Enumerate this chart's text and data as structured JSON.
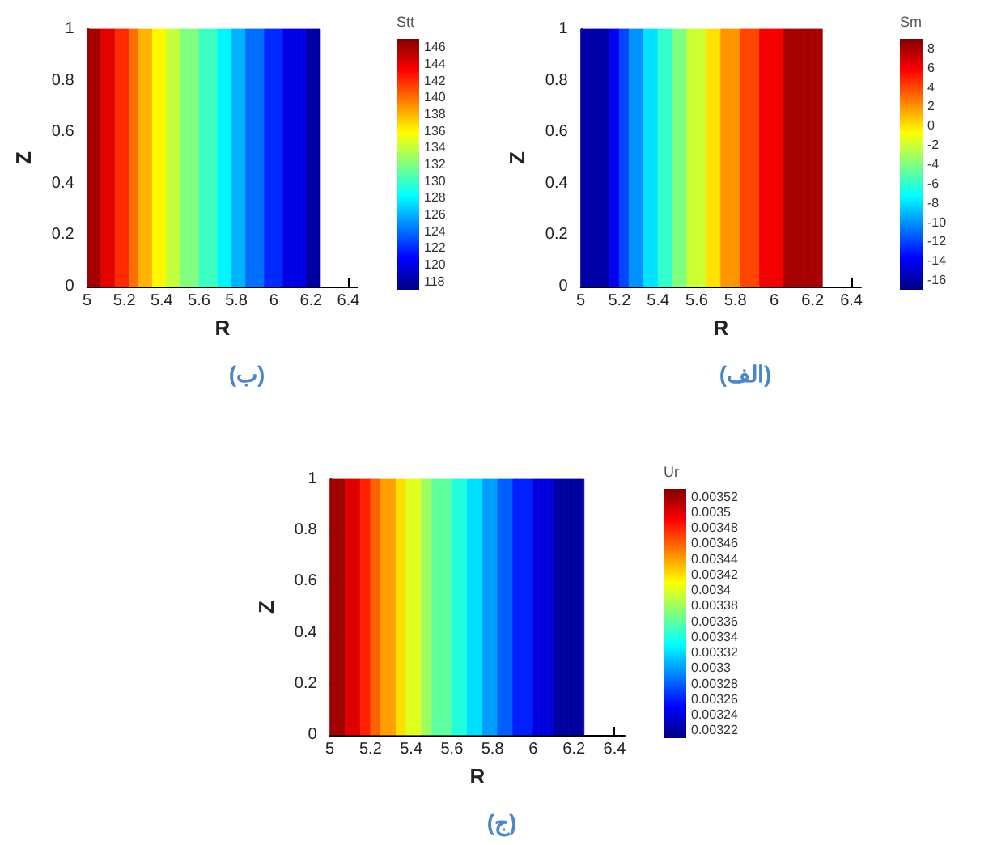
{
  "chart_data": [
    {
      "type": "heatmap",
      "title": "(ب)",
      "xlabel": "R",
      "ylabel": "Z",
      "clabel": "Stt",
      "cells": [
        [
          146,
          146,
          146,
          144,
          144,
          144,
          142,
          142,
          142,
          140,
          140,
          138,
          138,
          138,
          136,
          136,
          136,
          134,
          134,
          134,
          132,
          132,
          132,
          132,
          130,
          130,
          130,
          130,
          128,
          128,
          128,
          126,
          126,
          126,
          124,
          124,
          124,
          124,
          122,
          122,
          122,
          122,
          120,
          120,
          120,
          120,
          120,
          118,
          118,
          118,
          null,
          null,
          null,
          null,
          null,
          null,
          null,
          null
        ]
      ],
      "xlim": [
        5,
        6.45
      ],
      "xticks": [
        5,
        5.2,
        5.4,
        5.6,
        5.8,
        6,
        6.2,
        6.4
      ],
      "ylim": [
        0,
        1
      ],
      "yticks": [
        0,
        0.2,
        0.4,
        0.6,
        0.8,
        1
      ],
      "clim": [
        117,
        147
      ],
      "cticks": [
        118,
        120,
        122,
        124,
        126,
        128,
        130,
        132,
        134,
        136,
        138,
        140,
        142,
        144,
        146
      ]
    },
    {
      "type": "heatmap",
      "title": "(الف)",
      "xlabel": "R",
      "ylabel": "Z",
      "clabel": "Sm",
      "cells": [
        [
          -16,
          -16,
          -16,
          -16,
          -16,
          -16,
          -14,
          -14,
          -12,
          -12,
          -10,
          -10,
          -10,
          -8,
          -8,
          -8,
          -6,
          -6,
          -6,
          -4,
          -4,
          -4,
          -2,
          -2,
          -2,
          -2,
          0,
          0,
          0,
          2,
          2,
          2,
          2,
          4,
          4,
          4,
          4,
          6,
          6,
          6,
          6,
          6,
          8,
          8,
          8,
          8,
          8,
          8,
          8,
          8,
          null,
          null,
          null,
          null,
          null,
          null,
          null,
          null
        ]
      ],
      "xlim": [
        5,
        6.45
      ],
      "xticks": [
        5,
        5.2,
        5.4,
        5.6,
        5.8,
        6,
        6.2,
        6.4
      ],
      "ylim": [
        0,
        1
      ],
      "yticks": [
        0,
        0.2,
        0.4,
        0.6,
        0.8,
        1
      ],
      "clim": [
        -17,
        9
      ],
      "cticks": [
        -16,
        -14,
        -12,
        -10,
        -8,
        -6,
        -4,
        -2,
        0,
        2,
        4,
        6,
        8
      ]
    },
    {
      "type": "heatmap",
      "title": "(ج)",
      "xlabel": "R",
      "ylabel": "Z",
      "clabel": "Ur",
      "cells": [
        [
          0.00352,
          0.00352,
          0.00352,
          0.0035,
          0.0035,
          0.0035,
          0.00348,
          0.00348,
          0.00346,
          0.00346,
          0.00344,
          0.00344,
          0.00344,
          0.00342,
          0.00342,
          0.0034,
          0.0034,
          0.0034,
          0.00338,
          0.00338,
          0.00336,
          0.00336,
          0.00336,
          0.00336,
          0.00334,
          0.00334,
          0.00334,
          0.00332,
          0.00332,
          0.00332,
          0.0033,
          0.0033,
          0.0033,
          0.00328,
          0.00328,
          0.00328,
          0.00326,
          0.00326,
          0.00326,
          0.00326,
          0.00324,
          0.00324,
          0.00324,
          0.00324,
          0.00322,
          0.00322,
          0.00322,
          0.00322,
          0.00322,
          0.00322,
          null,
          null,
          null,
          null,
          null,
          null,
          null,
          null
        ]
      ],
      "xlim": [
        5,
        6.45
      ],
      "xticks": [
        5,
        5.2,
        5.4,
        5.6,
        5.8,
        6,
        6.2,
        6.4
      ],
      "ylim": [
        0,
        1
      ],
      "yticks": [
        0,
        0.2,
        0.4,
        0.6,
        0.8,
        1
      ],
      "clim": [
        0.00321,
        0.00353
      ],
      "cticks": [
        0.00322,
        0.00324,
        0.00326,
        0.00328,
        0.0033,
        0.00332,
        0.00334,
        0.00336,
        0.00338,
        0.0034,
        0.00342,
        0.00344,
        0.00346,
        0.00348,
        0.0035,
        0.00352
      ]
    }
  ]
}
